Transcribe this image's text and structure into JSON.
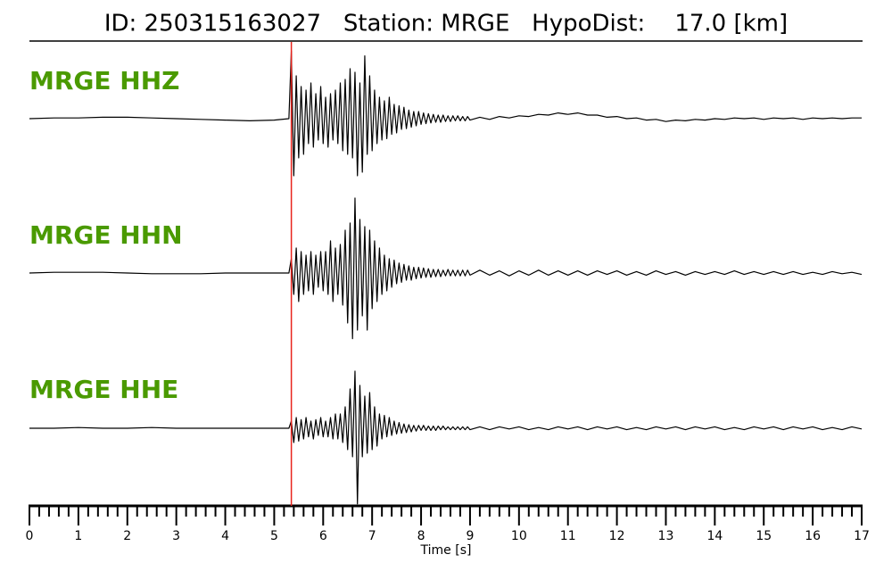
{
  "chart_data": {
    "type": "line",
    "title": "ID: 250315163027   Station: MRGE   HypoDist:    17.0 [km]",
    "xlabel": "Time [s]",
    "xlim": [
      0,
      17
    ],
    "xticks": [
      0,
      1,
      2,
      3,
      4,
      5,
      6,
      7,
      8,
      9,
      10,
      11,
      12,
      13,
      14,
      15,
      16,
      17
    ],
    "xminorticks": [
      0.2,
      0.4,
      0.6,
      0.8,
      1.2,
      1.4,
      1.6,
      1.8,
      2.2,
      2.4,
      2.6,
      2.8,
      3.2,
      3.4,
      3.6,
      3.8,
      4.2,
      4.4,
      4.6,
      4.8,
      5.2,
      5.4,
      5.6,
      5.8,
      6.2,
      6.4,
      6.6,
      6.8,
      7.2,
      7.4,
      7.6,
      7.8,
      8.2,
      8.4,
      8.6,
      8.8,
      9.2,
      9.4,
      9.6,
      9.8,
      10.2,
      10.4,
      10.6,
      10.8,
      11.2,
      11.4,
      11.6,
      11.8,
      12.2,
      12.4,
      12.6,
      12.8,
      13.2,
      13.4,
      13.6,
      13.8,
      14.2,
      14.4,
      14.6,
      14.8,
      15.2,
      15.4,
      15.6,
      15.8,
      16.2,
      16.4,
      16.6,
      16.8
    ],
    "pick_time": 5.35,
    "pick_color": "#e8231c",
    "label_color": "#4a9a00",
    "x": [
      0,
      0.5,
      1,
      1.5,
      2,
      2.5,
      3,
      3.5,
      4,
      4.5,
      5,
      5.3,
      5.35,
      5.4,
      5.45,
      5.5,
      5.55,
      5.6,
      5.65,
      5.7,
      5.75,
      5.8,
      5.85,
      5.9,
      5.95,
      6.0,
      6.05,
      6.1,
      6.15,
      6.2,
      6.25,
      6.3,
      6.35,
      6.4,
      6.45,
      6.5,
      6.55,
      6.6,
      6.65,
      6.7,
      6.75,
      6.8,
      6.85,
      6.9,
      6.95,
      7.0,
      7.05,
      7.1,
      7.15,
      7.2,
      7.25,
      7.3,
      7.35,
      7.4,
      7.45,
      7.5,
      7.55,
      7.6,
      7.65,
      7.7,
      7.75,
      7.8,
      7.85,
      7.9,
      7.95,
      8.0,
      8.05,
      8.1,
      8.15,
      8.2,
      8.25,
      8.3,
      8.35,
      8.4,
      8.45,
      8.5,
      8.55,
      8.6,
      8.65,
      8.7,
      8.75,
      8.8,
      8.85,
      8.9,
      8.95,
      9.0,
      9.2,
      9.4,
      9.6,
      9.8,
      10.0,
      10.2,
      10.4,
      10.6,
      10.8,
      11.0,
      11.2,
      11.4,
      11.6,
      11.8,
      12.0,
      12.2,
      12.4,
      12.6,
      12.8,
      13.0,
      13.2,
      13.4,
      13.6,
      13.8,
      14.0,
      14.2,
      14.4,
      14.6,
      14.8,
      15.0,
      15.2,
      15.4,
      15.6,
      15.8,
      16.0,
      16.2,
      16.4,
      16.6,
      16.8,
      17.0
    ],
    "series": [
      {
        "name": "MRGE HHZ",
        "color": "#000000",
        "values": [
          0,
          0.01,
          0.01,
          0.02,
          0.02,
          0.01,
          0,
          -0.01,
          -0.02,
          -0.03,
          -0.02,
          0.0,
          0.95,
          -0.8,
          0.6,
          -0.55,
          0.45,
          -0.5,
          0.4,
          -0.35,
          0.5,
          -0.4,
          0.35,
          -0.3,
          0.45,
          -0.35,
          0.3,
          -0.4,
          0.35,
          -0.3,
          0.4,
          -0.35,
          0.5,
          -0.45,
          0.55,
          -0.5,
          0.7,
          -0.55,
          0.65,
          -0.8,
          0.5,
          -0.75,
          0.88,
          -0.5,
          0.6,
          -0.45,
          0.4,
          -0.35,
          0.3,
          -0.3,
          0.25,
          -0.28,
          0.3,
          -0.22,
          0.2,
          -0.2,
          0.18,
          -0.15,
          0.16,
          -0.14,
          0.12,
          -0.12,
          0.1,
          -0.1,
          0.1,
          -0.08,
          0.08,
          -0.07,
          0.07,
          -0.06,
          0.06,
          -0.05,
          0.05,
          -0.05,
          0.05,
          -0.04,
          0.04,
          -0.04,
          0.04,
          -0.03,
          0.04,
          -0.03,
          0.03,
          -0.03,
          0.03,
          -0.02,
          0.02,
          -0.01,
          0.03,
          0.01,
          0.04,
          0.03,
          0.06,
          0.05,
          0.08,
          0.06,
          0.08,
          0.05,
          0.05,
          0.02,
          0.03,
          0,
          0.01,
          -0.02,
          -0.01,
          -0.04,
          -0.02,
          -0.03,
          -0.01,
          -0.02,
          0,
          -0.01,
          0.01,
          0,
          0.01,
          -0.01,
          0.01,
          0,
          0.01,
          -0.01,
          0.01,
          0,
          0.01,
          0,
          0.01,
          0.01
        ]
      },
      {
        "name": "MRGE HHN",
        "color": "#000000",
        "values": [
          0,
          0.01,
          0.01,
          0.01,
          0,
          -0.01,
          -0.01,
          -0.01,
          0,
          0,
          0,
          0,
          0.2,
          -0.3,
          0.35,
          -0.4,
          0.3,
          -0.3,
          0.25,
          -0.25,
          0.3,
          -0.3,
          0.25,
          -0.2,
          0.3,
          -0.25,
          0.3,
          -0.3,
          0.45,
          -0.4,
          0.35,
          -0.3,
          0.4,
          -0.45,
          0.6,
          -0.7,
          0.7,
          -0.92,
          1.05,
          -0.8,
          0.75,
          -0.6,
          0.65,
          -0.8,
          0.6,
          -0.5,
          0.45,
          -0.4,
          0.35,
          -0.3,
          0.25,
          -0.25,
          0.2,
          -0.2,
          0.18,
          -0.15,
          0.14,
          -0.13,
          0.12,
          -0.1,
          0.1,
          -0.1,
          0.08,
          -0.08,
          0.08,
          -0.07,
          0.07,
          -0.06,
          0.06,
          -0.06,
          0.05,
          -0.05,
          0.05,
          -0.05,
          0.04,
          -0.04,
          0.05,
          -0.04,
          0.04,
          -0.04,
          0.04,
          -0.04,
          0.04,
          -0.04,
          0.04,
          -0.03,
          0.04,
          -0.03,
          0.03,
          -0.04,
          0.03,
          -0.03,
          0.04,
          -0.03,
          0.03,
          -0.03,
          0.03,
          -0.03,
          0.03,
          -0.02,
          0.03,
          -0.03,
          0.02,
          -0.03,
          0.03,
          -0.02,
          0.02,
          -0.03,
          0.02,
          -0.02,
          0.02,
          -0.02,
          0.03,
          -0.02,
          0.02,
          -0.02,
          0.02,
          -0.02,
          0.02,
          -0.02,
          0.01,
          -0.02,
          0.02,
          -0.01,
          0.01,
          -0.02
        ]
      },
      {
        "name": "MRGE HHE",
        "color": "#000000",
        "values": [
          0,
          0,
          0.01,
          0,
          0,
          0.01,
          0,
          0,
          0,
          0,
          0,
          0,
          0.1,
          -0.2,
          0.15,
          -0.18,
          0.12,
          -0.15,
          0.15,
          -0.12,
          0.1,
          -0.15,
          0.12,
          -0.1,
          0.15,
          -0.12,
          0.1,
          -0.12,
          0.15,
          -0.15,
          0.2,
          -0.15,
          0.2,
          -0.2,
          0.3,
          -0.3,
          0.55,
          -0.4,
          0.8,
          -1.06,
          0.6,
          -0.4,
          0.45,
          -0.35,
          0.5,
          -0.3,
          0.3,
          -0.25,
          0.2,
          -0.15,
          0.18,
          -0.12,
          0.15,
          -0.1,
          0.1,
          -0.08,
          0.08,
          -0.07,
          0.06,
          -0.06,
          0.05,
          -0.05,
          0.04,
          -0.04,
          0.04,
          -0.03,
          0.04,
          -0.03,
          0.03,
          -0.03,
          0.03,
          -0.03,
          0.03,
          -0.02,
          0.03,
          -0.02,
          0.02,
          -0.02,
          0.02,
          -0.02,
          0.02,
          -0.02,
          0.02,
          -0.02,
          0.02,
          -0.02,
          0.02,
          -0.02,
          0.02,
          -0.01,
          0.02,
          -0.02,
          0.01,
          -0.02,
          0.02,
          -0.01,
          0.02,
          -0.02,
          0.02,
          -0.01,
          0.02,
          -0.02,
          0.01,
          -0.02,
          0.02,
          -0.01,
          0.02,
          -0.02,
          0.02,
          -0.01,
          0.02,
          -0.02,
          0.01,
          -0.02,
          0.02,
          -0.01,
          0.02,
          -0.02,
          0.02,
          -0.01,
          0.02,
          -0.02,
          0.01,
          -0.02,
          0.02,
          -0.01
        ]
      }
    ]
  }
}
